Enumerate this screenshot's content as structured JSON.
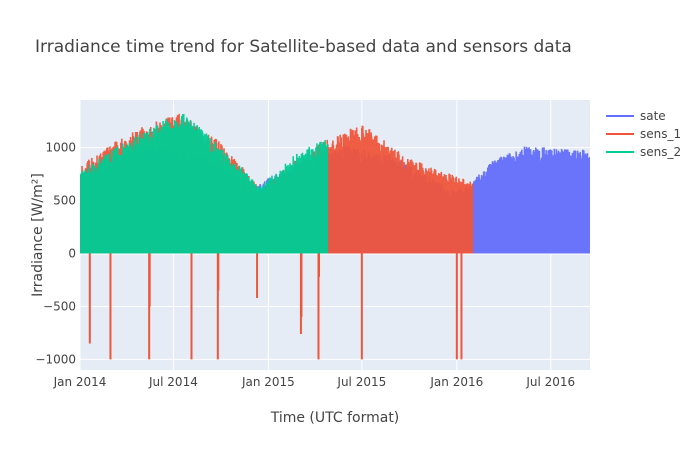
{
  "chart_data": {
    "type": "line",
    "title": "Irradiance time trend for Satellite-based data and sensors data",
    "xlabel": "Time (UTC format)",
    "ylabel": "Irradiance [W/m²]",
    "xlim": [
      "2014-01-01",
      "2016-09-15"
    ],
    "ylim": [
      -1100,
      1450
    ],
    "grid": true,
    "legend_position": "right",
    "x_ticks": [
      {
        "date": "2014-01-01",
        "label": "Jan 2014"
      },
      {
        "date": "2014-07-01",
        "label": "Jul 2014"
      },
      {
        "date": "2015-01-01",
        "label": "Jan 2015"
      },
      {
        "date": "2015-07-01",
        "label": "Jul 2015"
      },
      {
        "date": "2016-01-01",
        "label": "Jan 2016"
      },
      {
        "date": "2016-07-01",
        "label": "Jul 2016"
      }
    ],
    "y_ticks": [
      {
        "value": -1000,
        "label": "−1000"
      },
      {
        "value": -500,
        "label": "−500"
      },
      {
        "value": 0,
        "label": "0"
      },
      {
        "value": 500,
        "label": "500"
      },
      {
        "value": 1000,
        "label": "1000"
      }
    ],
    "series": [
      {
        "name": "sate",
        "color": "#636efa",
        "date_range": [
          "2014-01-01",
          "2016-09-15"
        ],
        "daily_peak_envelope": [
          {
            "date": "2014-01-01",
            "value": 760
          },
          {
            "date": "2014-03-01",
            "value": 900
          },
          {
            "date": "2014-06-01",
            "value": 1000
          },
          {
            "date": "2014-09-01",
            "value": 900
          },
          {
            "date": "2014-12-01",
            "value": 620
          },
          {
            "date": "2015-03-01",
            "value": 850
          },
          {
            "date": "2015-06-01",
            "value": 1000
          },
          {
            "date": "2015-09-01",
            "value": 900
          },
          {
            "date": "2015-11-15",
            "value": 700
          },
          {
            "date": "2015-12-20",
            "value": 590
          },
          {
            "date": "2016-01-20",
            "value": 620
          },
          {
            "date": "2016-03-15",
            "value": 880
          },
          {
            "date": "2016-05-15",
            "value": 1000
          },
          {
            "date": "2016-09-15",
            "value": 960
          }
        ]
      },
      {
        "name": "sens_1",
        "color": "#ef553b",
        "date_range": [
          "2014-01-01",
          "2016-01-31"
        ],
        "daily_peak_envelope": [
          {
            "date": "2014-01-01",
            "value": 820
          },
          {
            "date": "2014-04-15",
            "value": 1150
          },
          {
            "date": "2014-07-15",
            "value": 1300
          },
          {
            "date": "2014-10-15",
            "value": 980
          },
          {
            "date": "2014-12-15",
            "value": 600
          },
          {
            "date": "2015-04-01",
            "value": 1000
          },
          {
            "date": "2015-07-01",
            "value": 1210
          },
          {
            "date": "2015-10-01",
            "value": 880
          },
          {
            "date": "2016-01-31",
            "value": 660
          }
        ],
        "negative_spikes": [
          {
            "date": "2014-01-20",
            "value": -850
          },
          {
            "date": "2014-03-01",
            "value": -1000
          },
          {
            "date": "2014-05-15",
            "value": -1000
          },
          {
            "date": "2014-05-16",
            "value": -500
          },
          {
            "date": "2014-08-05",
            "value": -1000
          },
          {
            "date": "2014-09-25",
            "value": -1000
          },
          {
            "date": "2014-09-26",
            "value": -350
          },
          {
            "date": "2014-12-10",
            "value": -420
          },
          {
            "date": "2015-03-05",
            "value": -760
          },
          {
            "date": "2015-03-06",
            "value": -600
          },
          {
            "date": "2015-04-08",
            "value": -1000
          },
          {
            "date": "2015-04-09",
            "value": -220
          },
          {
            "date": "2015-07-01",
            "value": -1000
          },
          {
            "date": "2016-01-01",
            "value": -1000
          },
          {
            "date": "2016-01-10",
            "value": -1000
          }
        ]
      },
      {
        "name": "sens_2",
        "color": "#00cc96",
        "date_range": [
          "2014-01-01",
          "2015-04-25"
        ],
        "daily_peak_envelope": [
          {
            "date": "2014-01-01",
            "value": 760
          },
          {
            "date": "2014-04-01",
            "value": 1050
          },
          {
            "date": "2014-07-15",
            "value": 1320
          },
          {
            "date": "2014-10-01",
            "value": 1000
          },
          {
            "date": "2014-12-15",
            "value": 620
          },
          {
            "date": "2015-03-01",
            "value": 950
          },
          {
            "date": "2015-04-25",
            "value": 1060
          }
        ]
      }
    ]
  }
}
